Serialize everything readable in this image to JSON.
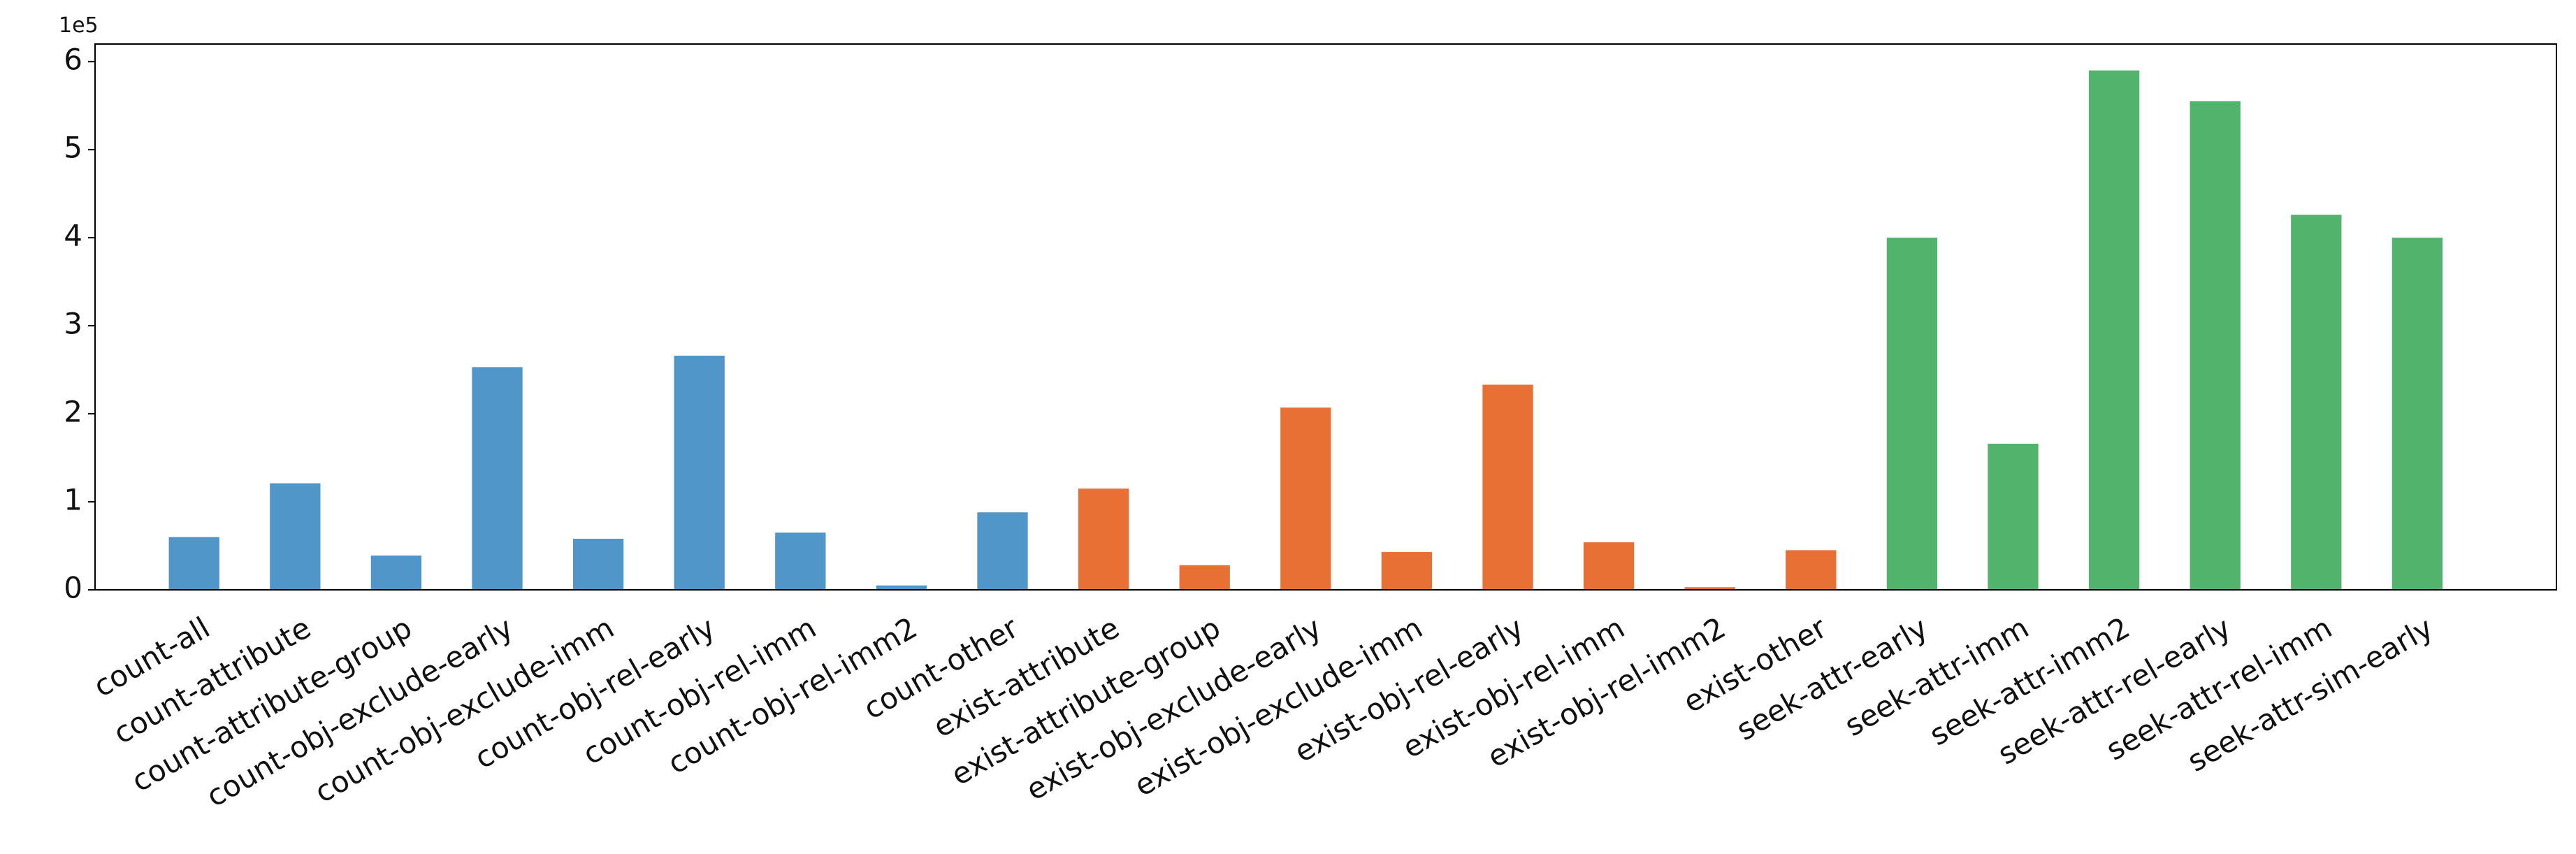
{
  "chart_data": {
    "type": "bar",
    "offset_label": "1e5",
    "categories": [
      "count-all",
      "count-attribute",
      "count-attribute-group",
      "count-obj-exclude-early",
      "count-obj-exclude-imm",
      "count-obj-rel-early",
      "count-obj-rel-imm",
      "count-obj-rel-imm2",
      "count-other",
      "exist-attribute",
      "exist-attribute-group",
      "exist-obj-exclude-early",
      "exist-obj-exclude-imm",
      "exist-obj-rel-early",
      "exist-obj-rel-imm",
      "exist-obj-rel-imm2",
      "exist-other",
      "seek-attr-early",
      "seek-attr-imm",
      "seek-attr-imm2",
      "seek-attr-rel-early",
      "seek-attr-rel-imm",
      "seek-attr-sim-early"
    ],
    "values": [
      0.6,
      1.21,
      0.39,
      2.53,
      0.58,
      2.66,
      0.65,
      0.05,
      0.88,
      1.15,
      0.28,
      2.07,
      0.43,
      2.33,
      0.54,
      0.03,
      0.45,
      4.0,
      1.66,
      5.9,
      5.55,
      4.26,
      4.0
    ],
    "colors": [
      "#5096c8",
      "#5096c8",
      "#5096c8",
      "#5096c8",
      "#5096c8",
      "#5096c8",
      "#5096c8",
      "#5096c8",
      "#5096c8",
      "#e87035",
      "#e87035",
      "#e87035",
      "#e87035",
      "#e87035",
      "#e87035",
      "#e87035",
      "#e87035",
      "#52b36c",
      "#52b36c",
      "#52b36c",
      "#52b36c",
      "#52b36c",
      "#52b36c"
    ],
    "ylim": [
      0,
      6.2
    ],
    "yticks": [
      0,
      1,
      2,
      3,
      4,
      5,
      6
    ],
    "grid": false
  }
}
